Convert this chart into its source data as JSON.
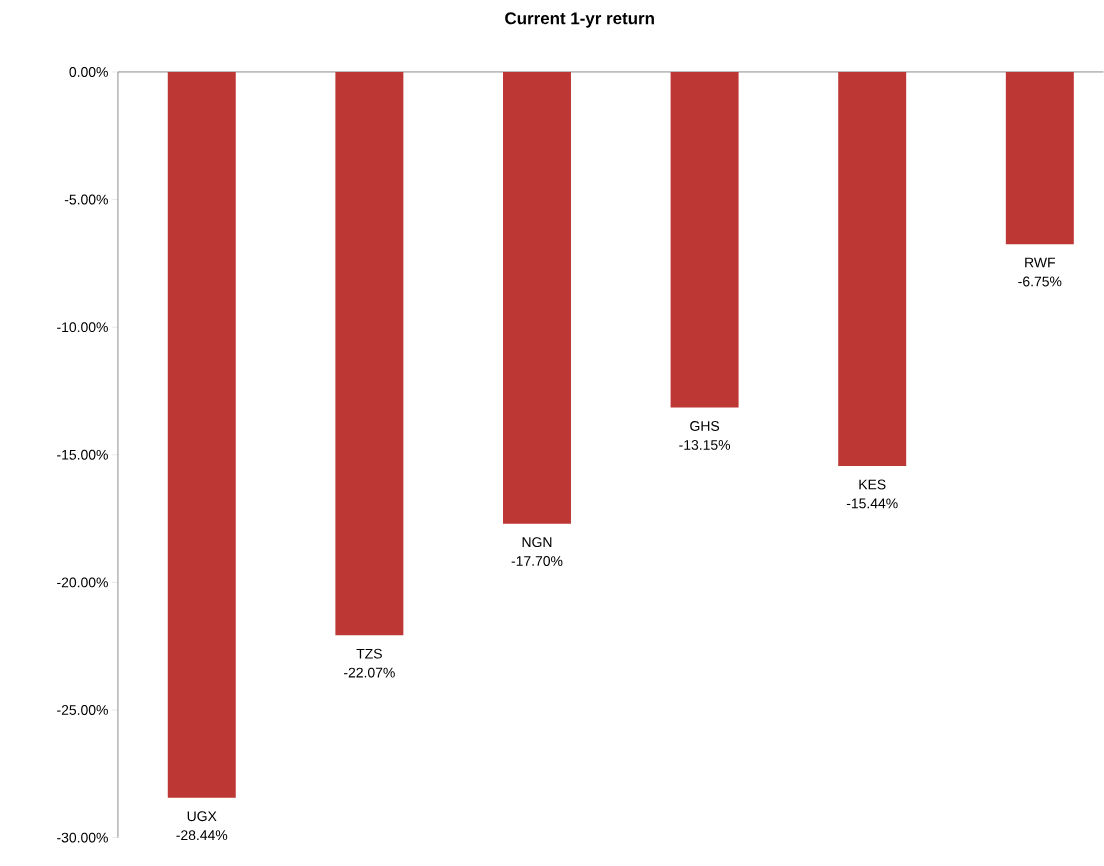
{
  "chart_data": {
    "type": "bar",
    "title": "Current 1-yr return",
    "categories": [
      "UGX",
      "TZS",
      "NGN",
      "GHS",
      "KES",
      "RWF"
    ],
    "values": [
      -28.44,
      -22.07,
      -17.7,
      -13.15,
      -15.44,
      -6.75
    ],
    "value_labels": [
      "-28.44%",
      "-22.07%",
      "-17.70%",
      "-13.15%",
      "-15.44%",
      "-6.75%"
    ],
    "color": "#bd3734",
    "ylim": [
      -30,
      0
    ],
    "yticks": [
      {
        "value": 0,
        "label": "0.00%"
      },
      {
        "value": -5,
        "label": "-5.00%"
      },
      {
        "value": -10,
        "label": "-10.00%"
      },
      {
        "value": -15,
        "label": "-15.00%"
      },
      {
        "value": -20,
        "label": "-20.00%"
      },
      {
        "value": -25,
        "label": "-25.00%"
      },
      {
        "value": -30,
        "label": "-30.00%"
      }
    ]
  }
}
